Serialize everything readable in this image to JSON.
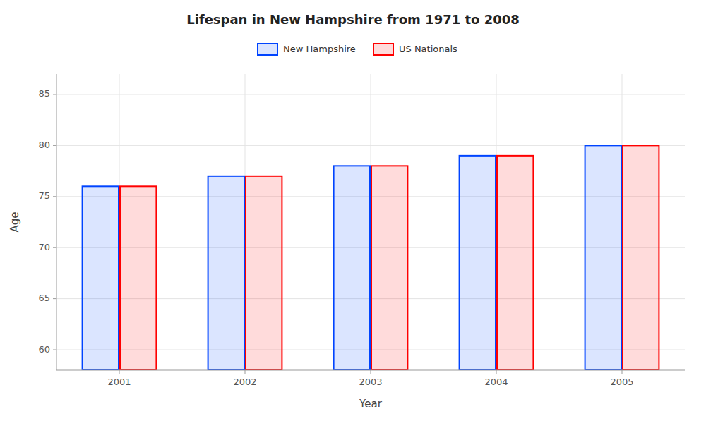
{
  "chart_data": {
    "type": "bar",
    "title": "Lifespan in New Hampshire from 1971 to 2008",
    "x_label": "Year",
    "y_label": "Age",
    "categories": [
      "2001",
      "2002",
      "2003",
      "2004",
      "2005"
    ],
    "series": [
      {
        "name": "New Hampshire",
        "color": "#0044ff",
        "values": [
          76,
          77,
          78,
          79,
          80
        ]
      },
      {
        "name": "US Nationals",
        "color": "#ff0000",
        "values": [
          76,
          77,
          78,
          79,
          80
        ]
      }
    ],
    "ylim": [
      58,
      87
    ],
    "yticks": [
      60,
      65,
      70,
      75,
      80,
      85
    ],
    "grid": true,
    "legend": "top"
  }
}
